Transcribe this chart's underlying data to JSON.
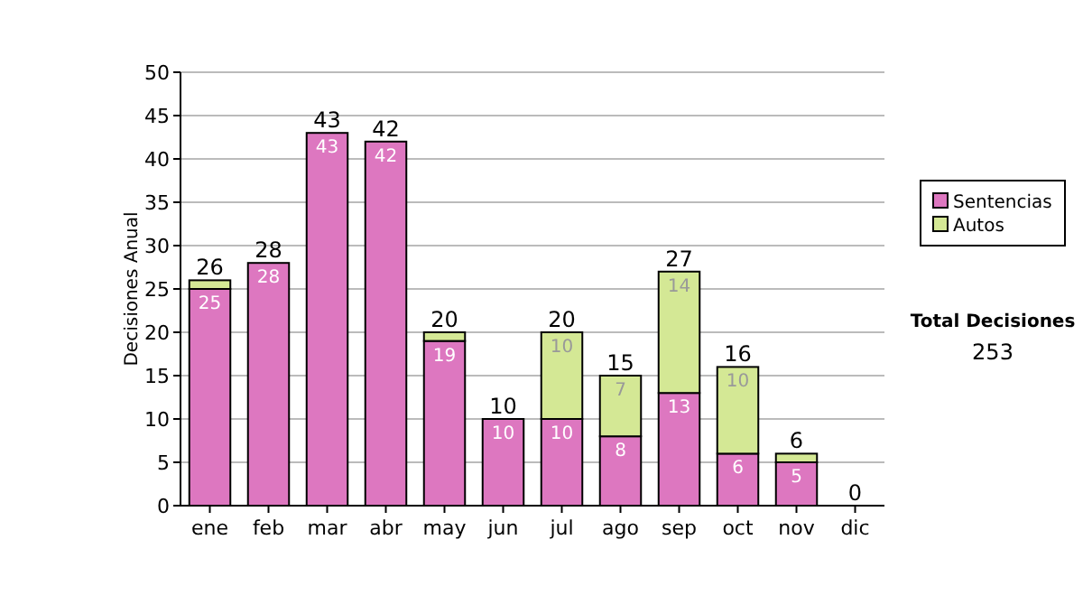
{
  "chart_data": {
    "type": "bar",
    "stacked": true,
    "ylabel": "Decisiones Anual",
    "categories": [
      "ene",
      "feb",
      "mar",
      "abr",
      "may",
      "jun",
      "jul",
      "ago",
      "sep",
      "oct",
      "nov",
      "dic"
    ],
    "series": [
      {
        "name": "Sentencias",
        "color": "#dd77c0",
        "values": [
          25,
          28,
          43,
          42,
          19,
          10,
          10,
          8,
          13,
          6,
          5,
          0
        ],
        "value_labels": [
          "25",
          "28",
          "43",
          "42",
          "19",
          "10",
          "10",
          "8",
          "13",
          "6",
          "5",
          null
        ]
      },
      {
        "name": "Autos",
        "color": "#d4e895",
        "values": [
          1,
          0,
          0,
          0,
          1,
          0,
          10,
          7,
          14,
          10,
          1,
          0
        ],
        "value_labels": [
          null,
          null,
          null,
          null,
          null,
          null,
          "10",
          "7",
          "14",
          "10",
          null,
          null
        ]
      }
    ],
    "totals": [
      "26",
      "28",
      "43",
      "42",
      "20",
      "10",
      "20",
      "15",
      "27",
      "16",
      "6",
      "0"
    ],
    "ylim": [
      0,
      50
    ],
    "yticks": [
      0,
      5,
      10,
      15,
      20,
      25,
      30,
      35,
      40,
      45,
      50
    ],
    "grid": "y",
    "legend": "right",
    "annotations": [
      "Total Decisiones",
      "253"
    ]
  }
}
